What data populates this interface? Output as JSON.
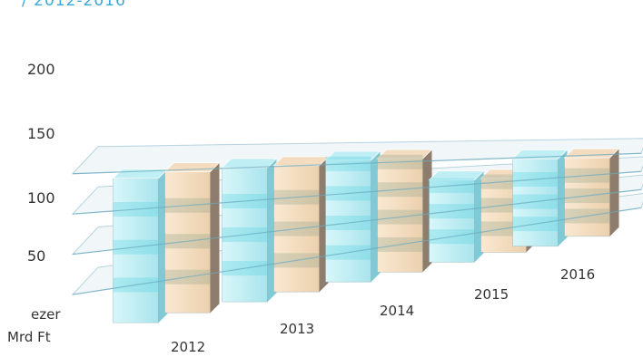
{
  "header": {
    "title_fragment": "/ 2012-2016"
  },
  "chart_data": {
    "type": "bar",
    "categories": [
      "2012",
      "2013",
      "2014",
      "2015",
      "2016"
    ],
    "series": [
      {
        "values": [
          191,
          200,
          206,
          161,
          196
        ]
      },
      {
        "values": [
          197,
          200,
          206,
          157,
          194
        ]
      }
    ],
    "ylabel": "ezer Mrd Ft",
    "ylabel_lines": [
      "ezer",
      "Mrd Ft"
    ],
    "yticks": [
      50,
      100,
      150,
      200
    ],
    "ylim": [
      0,
      220
    ],
    "grid": true,
    "colors": {
      "series_1": "#bfeff4",
      "series_2": "#f3dcc0",
      "plane": "#9cc7d6"
    }
  }
}
